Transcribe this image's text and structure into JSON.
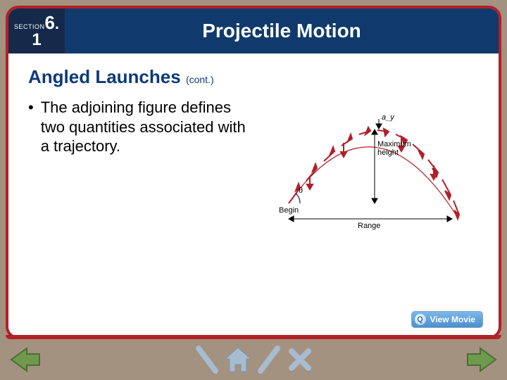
{
  "colors": {
    "frame_border": "#b22028",
    "header_bg": "#103a6b",
    "tab_bg": "#15294a",
    "subtitle": "#0d3a78",
    "body_text": "#000000",
    "nav_arrow": "#6f9a4e",
    "nav_arrow_edge": "#4b6e34",
    "nav_icon": "#a7bcd0",
    "page_bg": "#a39280"
  },
  "header": {
    "section_label": "SECTION",
    "chapter": "6",
    "dot": ".",
    "sub": "1",
    "title": "Projectile Motion"
  },
  "subtitle": {
    "main": "Angled Launches",
    "cont": "(cont.)"
  },
  "bullet": {
    "text": "The adjoining figure defines two quantities associated with a trajectory."
  },
  "figure": {
    "labels": {
      "begin": "Begin",
      "maxh": "Maximum\nheight",
      "range": "Range",
      "ay": "a_y",
      "theta": "θ"
    },
    "trajectory_color": "#b21f2a",
    "vert_marker_color": "#000000"
  },
  "buttons": {
    "view_movie": "View Movie"
  }
}
